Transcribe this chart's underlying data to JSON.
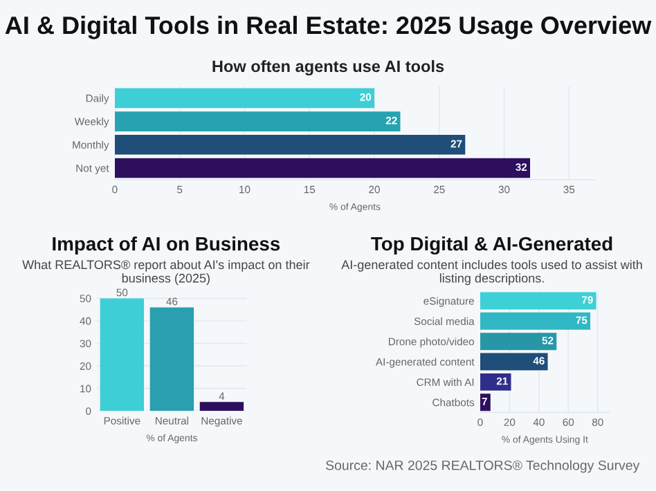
{
  "chart_data": [
    {
      "type": "bar",
      "orientation": "horizontal",
      "title": "AI & Digital Tools in Real Estate: 2025 Usage Overview",
      "subtitle": "How often agents use AI tools",
      "xlabel": "% of Agents",
      "categories": [
        "Daily",
        "Weekly",
        "Monthly",
        "Not yet"
      ],
      "values": [
        20,
        22,
        27,
        32
      ],
      "colors": [
        "#3ecfd6",
        "#27a3b0",
        "#1f4e79",
        "#2e0f5e"
      ],
      "xlim": [
        0,
        37
      ],
      "xticks": [
        0,
        5,
        10,
        15,
        20,
        25,
        30,
        35
      ],
      "grid": "x",
      "data_labels": true
    },
    {
      "type": "bar",
      "title": "Impact of AI on Business",
      "subtitle": "What REALTORS® report about AI's impact on their business (2025)",
      "xlabel": "% of Agents",
      "categories": [
        "Positive",
        "Neutral",
        "Negative"
      ],
      "values": [
        50,
        46,
        4
      ],
      "colors": [
        "#3ecfd6",
        "#2a9fb0",
        "#2e0f5e"
      ],
      "ylim": [
        0,
        51
      ],
      "yticks": [
        0,
        10,
        20,
        30,
        40,
        50
      ],
      "grid": "y",
      "data_labels": true
    },
    {
      "type": "bar",
      "orientation": "horizontal",
      "title": "Top Digital & AI-Generated",
      "subtitle": "AI-generated content includes tools used to assist with listing descriptions.",
      "xlabel": "% of Agents Using It",
      "categories": [
        "eSignature",
        "Social media",
        "Drone photo/video",
        "AI-generated content",
        "CRM with AI",
        "Chatbots"
      ],
      "values": [
        79,
        75,
        52,
        46,
        21,
        7
      ],
      "colors": [
        "#3dd0d6",
        "#30b7c4",
        "#2797a8",
        "#1f4e79",
        "#2f2e8a",
        "#2e0f5e"
      ],
      "xlim": [
        0,
        88
      ],
      "xticks": [
        0,
        20,
        40,
        60,
        80
      ],
      "grid": "x",
      "data_labels": true,
      "annotations": [
        "Source: NAR 2025 REALTORS® Technology Survey"
      ]
    }
  ]
}
